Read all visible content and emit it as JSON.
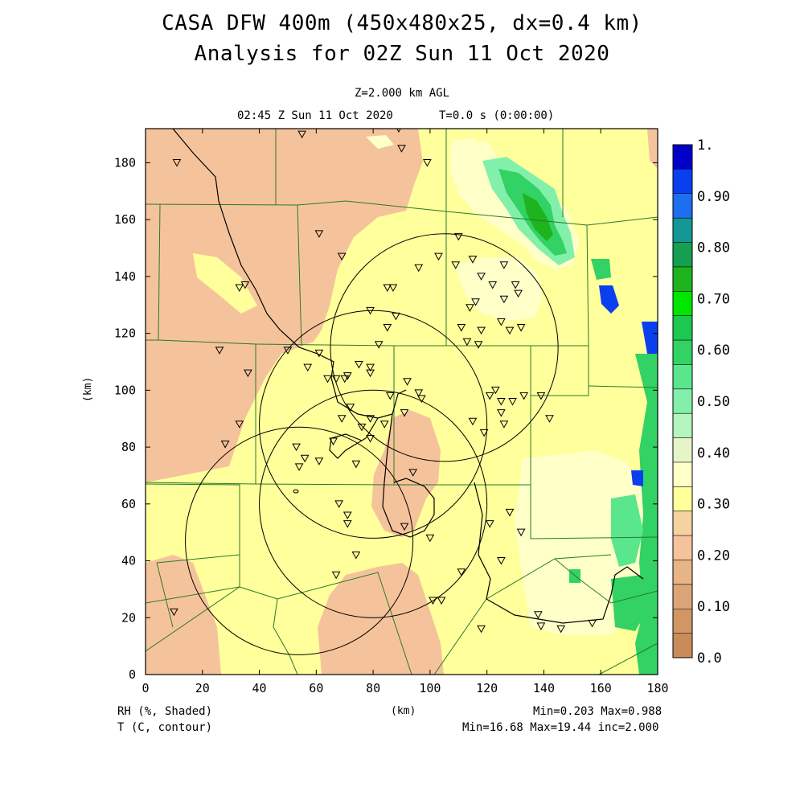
{
  "header": {
    "title_line1": "CASA DFW 400m (450x480x25, dx=0.4 km)",
    "title_line2": "Analysis for 02Z Sun 11 Oct 2020",
    "level": "Z=2.000 km AGL",
    "valid_time": "02:45 Z Sun 11 Oct 2020",
    "forecast_time": "T=0.0 s (0:00:00)"
  },
  "axes": {
    "x_ticks": [
      "0",
      "20",
      "40",
      "60",
      "80",
      "100",
      "120",
      "140",
      "160",
      "180"
    ],
    "y_ticks": [
      "0",
      "20",
      "40",
      "60",
      "80",
      "100",
      "120",
      "140",
      "160",
      "180"
    ],
    "x_label": "(km)",
    "y_label": "(km)"
  },
  "colorbar": {
    "labels": [
      "1.",
      "0.90",
      "0.80",
      "0.70",
      "0.60",
      "0.50",
      "0.40",
      "0.30",
      "0.20",
      "0.10",
      "0.0"
    ],
    "colors": [
      "#0000c8",
      "#0a3ff0",
      "#1e6ef0",
      "#149696",
      "#14a050",
      "#1eb41e",
      "#00e600",
      "#1ec850",
      "#32d264",
      "#5ae68c",
      "#82f0aa",
      "#b4f5be",
      "#e6f5c8",
      "#ffffc8",
      "#ffff9b",
      "#f5d2a0",
      "#f5c39b",
      "#e6b487",
      "#dca578",
      "#d29664",
      "#c88c5a"
    ]
  },
  "footer": {
    "left_line1": "RH (%, Shaded)",
    "left_line2": "T (C, contour)",
    "center": "(km)",
    "right_line1": "Min=0.203 Max=0.988",
    "right_line2": "Min=16.68 Max=19.44 inc=2.000"
  },
  "map_data": {
    "x_range_km": [
      0,
      180
    ],
    "y_range_km": [
      0,
      192
    ],
    "field_colors": {
      "dry": "#f5c39b",
      "moderate": "#ffff9b",
      "light": "#ffffc8",
      "moist": "#32d264",
      "very_moist": "#0a3ff0"
    },
    "radar_range_rings": [
      {
        "center_km": [
          80,
          88
        ],
        "radius_km": 40
      },
      {
        "center_km": [
          105,
          115
        ],
        "radius_km": 40
      },
      {
        "center_km": [
          54,
          47
        ],
        "radius_km": 40
      },
      {
        "center_km": [
          80,
          60
        ],
        "radius_km": 40
      }
    ],
    "stations_km": [
      [
        11,
        180
      ],
      [
        55,
        190
      ],
      [
        89,
        192
      ],
      [
        90,
        185
      ],
      [
        99,
        180
      ],
      [
        61,
        155
      ],
      [
        69,
        147
      ],
      [
        35,
        137
      ],
      [
        110,
        154
      ],
      [
        115,
        146
      ],
      [
        96,
        143
      ],
      [
        103,
        147
      ],
      [
        109,
        144
      ],
      [
        118,
        140
      ],
      [
        122,
        137
      ],
      [
        126,
        144
      ],
      [
        131,
        134
      ],
      [
        130,
        137
      ],
      [
        85,
        136
      ],
      [
        87,
        136
      ],
      [
        88,
        126
      ],
      [
        114,
        129
      ],
      [
        126,
        132
      ],
      [
        132,
        122
      ],
      [
        128,
        121
      ],
      [
        125,
        124
      ],
      [
        116,
        131
      ],
      [
        111,
        122
      ],
      [
        118,
        121
      ],
      [
        117,
        116
      ],
      [
        113,
        117
      ],
      [
        85,
        122
      ],
      [
        79,
        128
      ],
      [
        82,
        116
      ],
      [
        26,
        114
      ],
      [
        36,
        106
      ],
      [
        50,
        114
      ],
      [
        57,
        108
      ],
      [
        61,
        113
      ],
      [
        75,
        109
      ],
      [
        64,
        104
      ],
      [
        67,
        104
      ],
      [
        70,
        104
      ],
      [
        71,
        105
      ],
      [
        79,
        106
      ],
      [
        79,
        108
      ],
      [
        86,
        98
      ],
      [
        92,
        103
      ],
      [
        96,
        99
      ],
      [
        97,
        97
      ],
      [
        121,
        98
      ],
      [
        125,
        96
      ],
      [
        125,
        92
      ],
      [
        129,
        96
      ],
      [
        133,
        98
      ],
      [
        139,
        98
      ],
      [
        142,
        90
      ],
      [
        115,
        89
      ],
      [
        123,
        100
      ],
      [
        126,
        88
      ],
      [
        119,
        85
      ],
      [
        33,
        88
      ],
      [
        28,
        81
      ],
      [
        53,
        80
      ],
      [
        54,
        73
      ],
      [
        56,
        76
      ],
      [
        61,
        75
      ],
      [
        66,
        82
      ],
      [
        69,
        90
      ],
      [
        72,
        94
      ],
      [
        76,
        87
      ],
      [
        79,
        90
      ],
      [
        84,
        88
      ],
      [
        91,
        92
      ],
      [
        79,
        83
      ],
      [
        74,
        74
      ],
      [
        94,
        71
      ],
      [
        68,
        60
      ],
      [
        71,
        56
      ],
      [
        71,
        53
      ],
      [
        91,
        52
      ],
      [
        100,
        48
      ],
      [
        121,
        53
      ],
      [
        128,
        57
      ],
      [
        125,
        40
      ],
      [
        111,
        36
      ],
      [
        101,
        26
      ],
      [
        104,
        26
      ],
      [
        118,
        16
      ],
      [
        138,
        21
      ],
      [
        139,
        17
      ],
      [
        146,
        16
      ],
      [
        157,
        18
      ],
      [
        10,
        22
      ],
      [
        33,
        136
      ],
      [
        74,
        42
      ],
      [
        67,
        35
      ],
      [
        132,
        50
      ]
    ]
  }
}
